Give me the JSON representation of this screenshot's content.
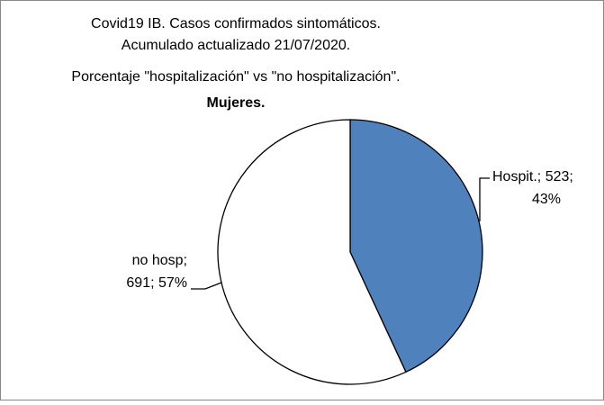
{
  "chart_data": {
    "type": "pie",
    "title": [
      "Covid19 IB. Casos confirmados sintomáticos.",
      "Acumulado actualizado 21/07/2020.",
      "Porcentaje \"hospitalización\" vs \"no hospitalización\".",
      "Mujeres."
    ],
    "values": [
      523,
      691
    ],
    "value_labels": [
      [
        "Hospit.; 523;",
        "43%"
      ],
      [
        "no hosp;",
        "691; 57%"
      ]
    ],
    "colors": [
      "#4f81bd",
      "#ffffff"
    ]
  }
}
